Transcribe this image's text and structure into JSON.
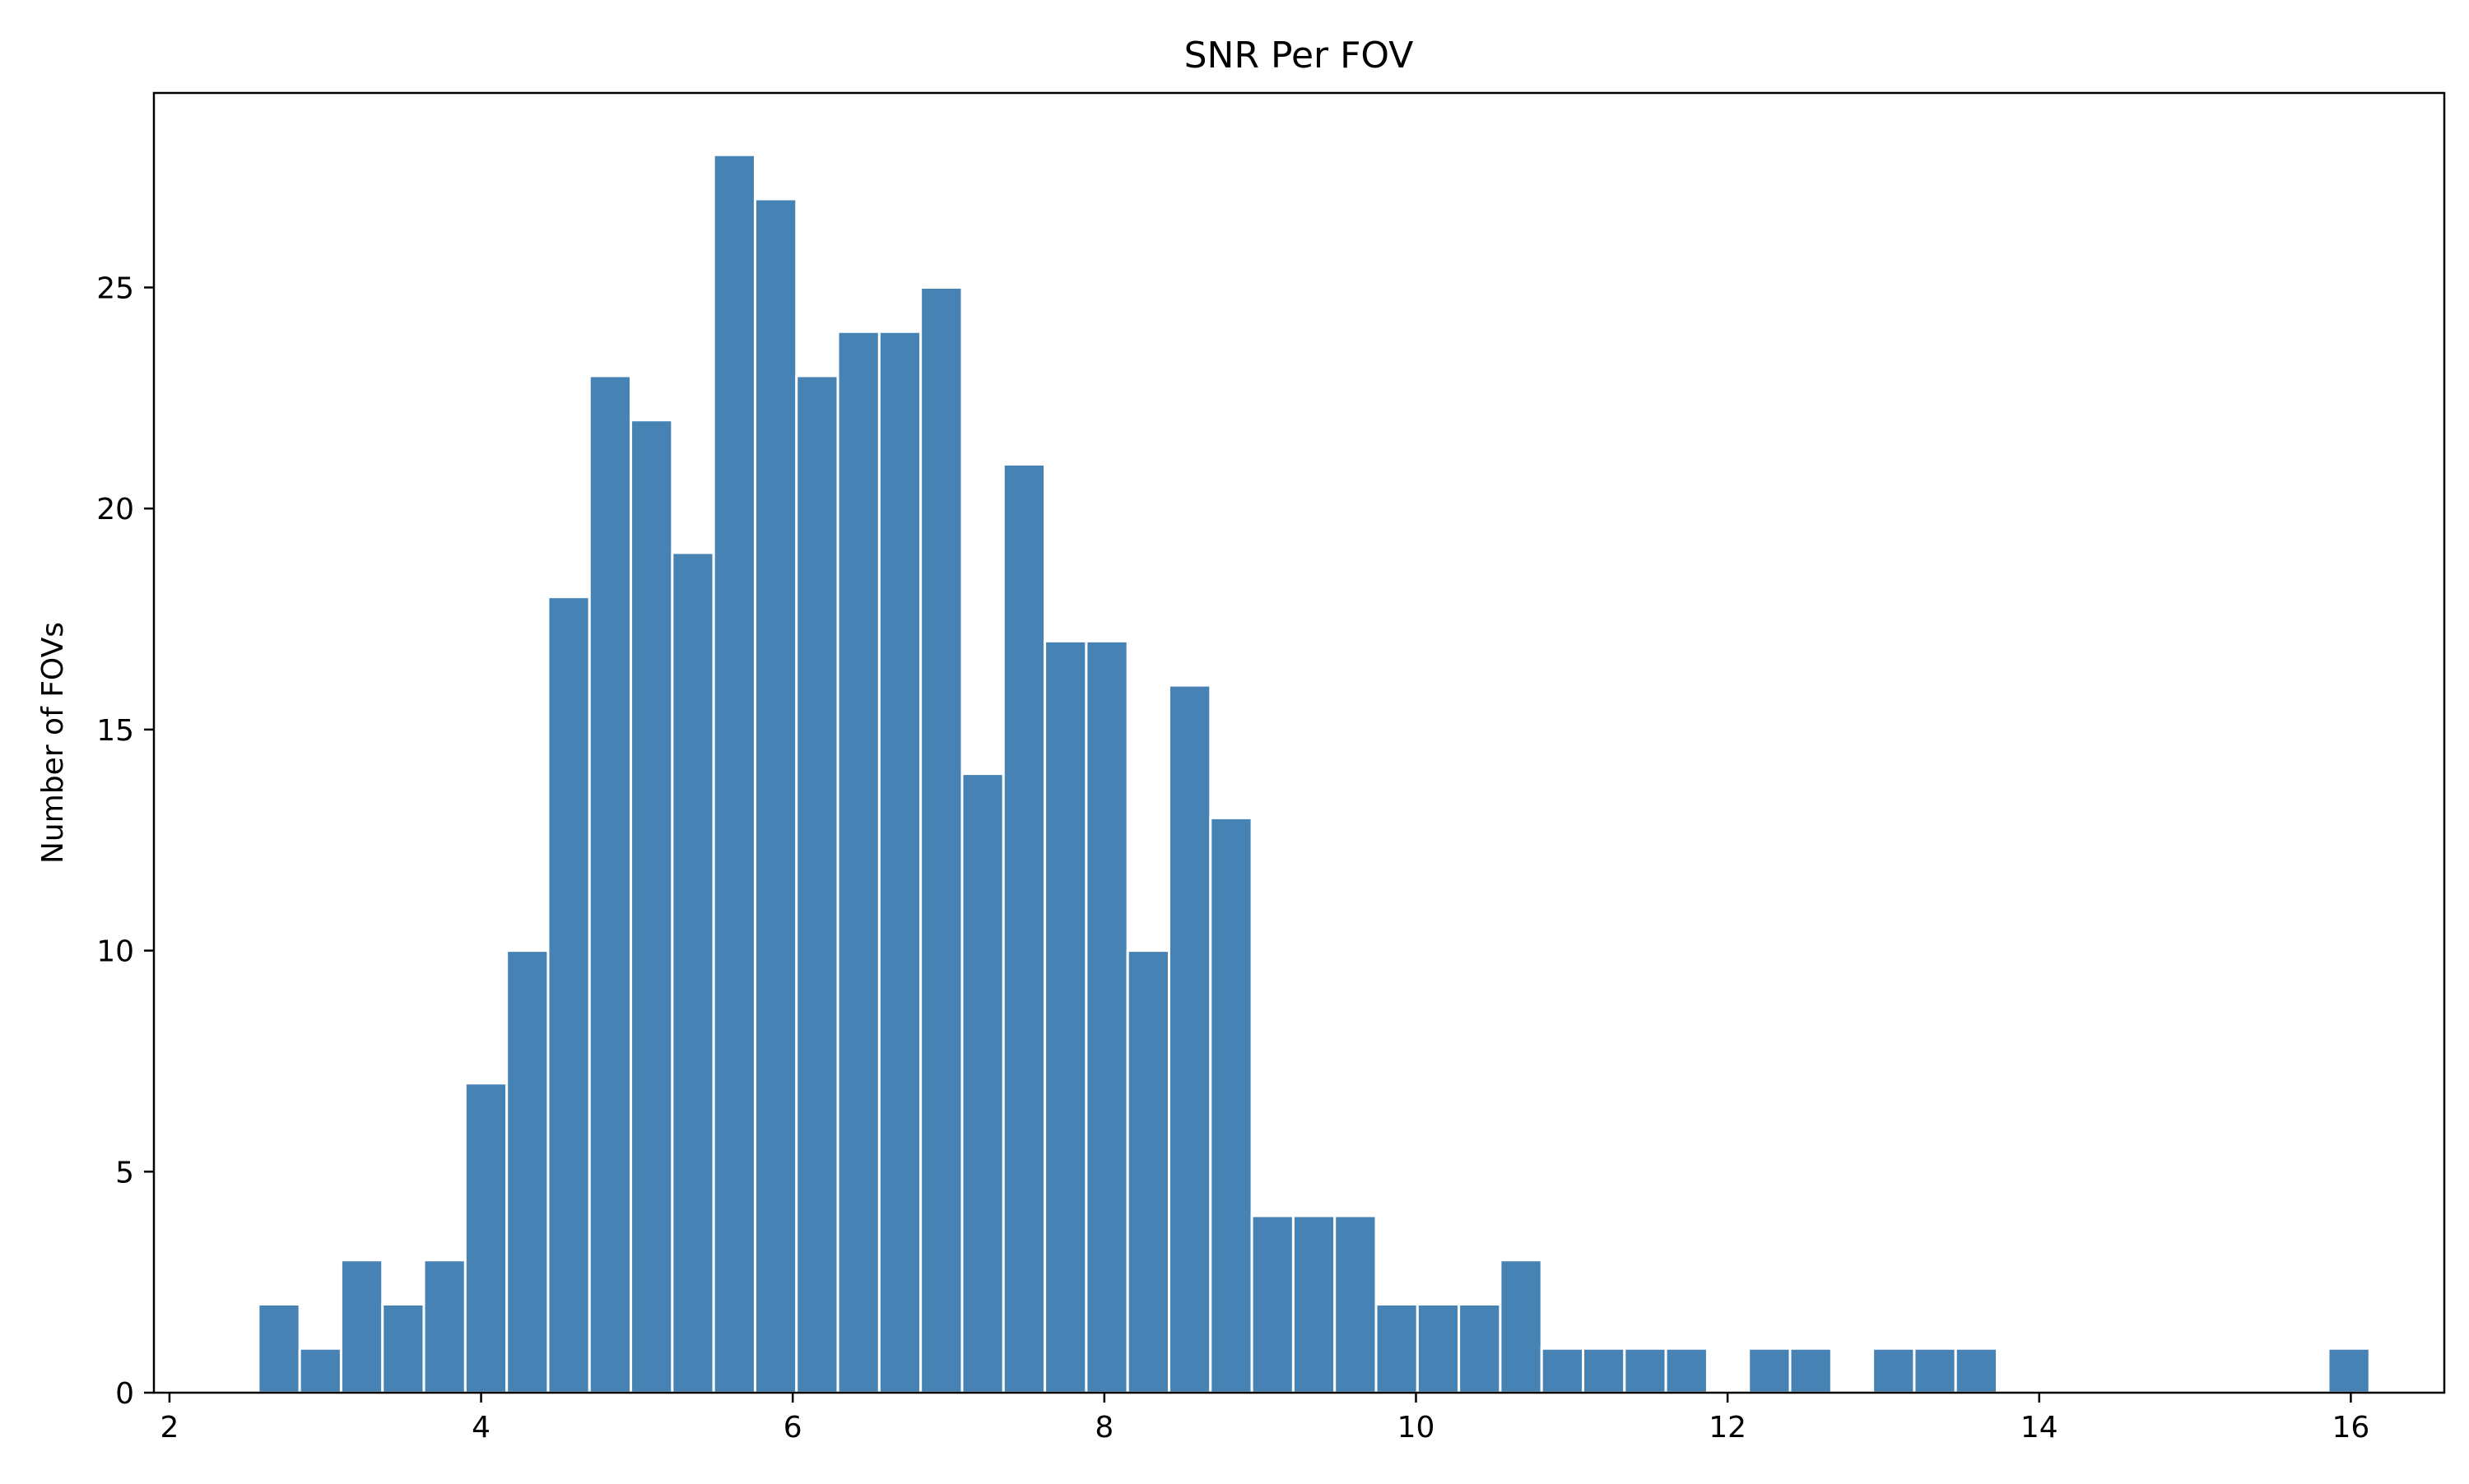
{
  "chart_data": {
    "type": "bar",
    "title": "SNR Per FOV",
    "xlabel": "",
    "ylabel": "Number of FOVs",
    "xlim": [
      1.9,
      16.6
    ],
    "ylim": [
      0,
      29.4
    ],
    "xticks": [
      2,
      4,
      6,
      8,
      10,
      12,
      14,
      16
    ],
    "yticks": [
      0,
      5,
      10,
      15,
      20,
      25
    ],
    "xtick_labels": [
      "2",
      "4",
      "6",
      "8",
      "10",
      "12",
      "14",
      "16"
    ],
    "ytick_labels": [
      "0",
      "5",
      "10",
      "15",
      "20",
      "25"
    ],
    "bin_start": 2.57,
    "bin_width": 0.2657,
    "values": [
      2,
      1,
      3,
      2,
      3,
      7,
      10,
      18,
      23,
      22,
      19,
      28,
      27,
      23,
      24,
      24,
      25,
      14,
      21,
      17,
      17,
      10,
      16,
      13,
      4,
      4,
      4,
      2,
      2,
      2,
      3,
      1,
      1,
      1,
      1,
      0,
      1,
      1,
      0,
      1,
      1,
      1,
      0,
      0,
      0,
      0,
      0,
      0,
      0,
      0,
      1
    ],
    "bar_color": "#4682b4",
    "bar_edge_color": "#ffffff",
    "grid": false,
    "legend": "none"
  }
}
